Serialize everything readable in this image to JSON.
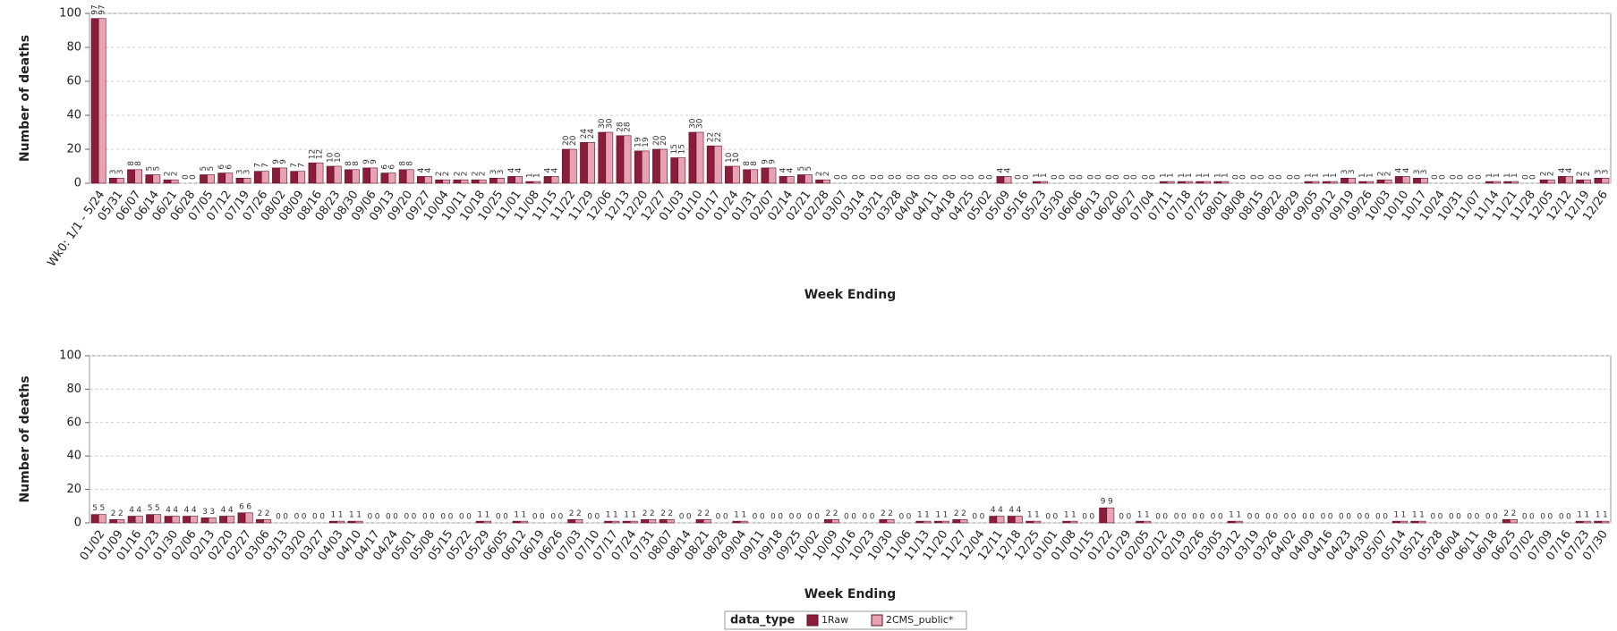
{
  "chart_data": [
    {
      "type": "bar",
      "ylabel": "Number of deaths",
      "xlabel": "Week Ending",
      "ylim": [
        0,
        100
      ],
      "yticks": [
        0,
        20,
        40,
        60,
        80,
        100
      ],
      "grid": true,
      "categories": [
        "Wk0: 1/1 - 5/24",
        "05/31",
        "06/07",
        "06/14",
        "06/21",
        "06/28",
        "07/05",
        "07/12",
        "07/19",
        "07/26",
        "08/02",
        "08/09",
        "08/16",
        "08/23",
        "08/30",
        "09/06",
        "09/13",
        "09/20",
        "09/27",
        "10/04",
        "10/11",
        "10/18",
        "10/25",
        "11/01",
        "11/08",
        "11/15",
        "11/22",
        "11/29",
        "12/06",
        "12/13",
        "12/20",
        "12/27",
        "01/03",
        "01/10",
        "01/17",
        "01/24",
        "01/31",
        "02/07",
        "02/14",
        "02/21",
        "02/28",
        "03/07",
        "03/14",
        "03/21",
        "03/28",
        "04/04",
        "04/11",
        "04/18",
        "04/25",
        "05/02",
        "05/09",
        "05/16",
        "05/23",
        "05/30",
        "06/06",
        "06/13",
        "06/20",
        "06/27",
        "07/04",
        "07/11",
        "07/18",
        "07/25",
        "08/01",
        "08/08",
        "08/15",
        "08/22",
        "08/29",
        "09/05",
        "09/12",
        "09/19",
        "09/26",
        "10/03",
        "10/10",
        "10/17",
        "10/24",
        "10/31",
        "11/07",
        "11/14",
        "11/21",
        "11/28",
        "12/05",
        "12/12",
        "12/19",
        "12/26"
      ],
      "series": [
        {
          "name": "1Raw",
          "color": "#8c1c3c",
          "values": [
            97,
            3,
            8,
            5,
            2,
            0,
            5,
            6,
            3,
            7,
            9,
            7,
            12,
            10,
            8,
            9,
            6,
            8,
            4,
            2,
            2,
            2,
            3,
            4,
            1,
            4,
            20,
            24,
            30,
            28,
            19,
            20,
            15,
            30,
            22,
            10,
            8,
            9,
            4,
            5,
            2,
            0,
            0,
            0,
            0,
            0,
            0,
            0,
            0,
            0,
            4,
            0,
            1,
            0,
            0,
            0,
            0,
            0,
            0,
            1,
            1,
            1,
            1,
            0,
            0,
            0,
            0,
            1,
            1,
            3,
            1,
            2,
            4,
            3,
            0,
            0,
            0,
            1,
            1,
            0,
            2,
            4,
            2,
            3
          ]
        },
        {
          "name": "2CMS_public*",
          "color": "#e8a3b3",
          "values": [
            97,
            3,
            8,
            5,
            2,
            0,
            5,
            6,
            3,
            7,
            9,
            7,
            12,
            10,
            8,
            9,
            6,
            8,
            4,
            2,
            2,
            2,
            3,
            4,
            1,
            4,
            20,
            24,
            30,
            28,
            19,
            20,
            15,
            30,
            22,
            10,
            8,
            9,
            4,
            5,
            2,
            0,
            0,
            0,
            0,
            0,
            0,
            0,
            0,
            0,
            4,
            0,
            1,
            0,
            0,
            0,
            0,
            0,
            0,
            1,
            1,
            1,
            1,
            0,
            0,
            0,
            0,
            1,
            1,
            3,
            1,
            2,
            4,
            3,
            0,
            0,
            0,
            1,
            1,
            0,
            2,
            4,
            2,
            3
          ]
        }
      ]
    },
    {
      "type": "bar",
      "ylabel": "Number of deaths",
      "xlabel": "Week Ending",
      "ylim": [
        0,
        100
      ],
      "yticks": [
        0,
        20,
        40,
        60,
        80,
        100
      ],
      "grid": true,
      "legend_title": "data_type",
      "legend": "bottom",
      "categories": [
        "01/02",
        "01/09",
        "01/16",
        "01/23",
        "01/30",
        "02/06",
        "02/13",
        "02/20",
        "02/27",
        "03/06",
        "03/13",
        "03/20",
        "03/27",
        "04/03",
        "04/10",
        "04/17",
        "04/24",
        "05/01",
        "05/08",
        "05/15",
        "05/22",
        "05/29",
        "06/05",
        "06/12",
        "06/19",
        "06/26",
        "07/03",
        "07/10",
        "07/17",
        "07/24",
        "07/31",
        "08/07",
        "08/14",
        "08/21",
        "08/28",
        "09/04",
        "09/11",
        "09/18",
        "09/25",
        "10/02",
        "10/09",
        "10/16",
        "10/23",
        "10/30",
        "11/06",
        "11/13",
        "11/20",
        "11/27",
        "12/04",
        "12/11",
        "12/18",
        "12/25",
        "01/01",
        "01/08",
        "01/15",
        "01/22",
        "01/29",
        "02/05",
        "02/12",
        "02/19",
        "02/26",
        "03/05",
        "03/12",
        "03/19",
        "03/26",
        "04/02",
        "04/09",
        "04/16",
        "04/23",
        "04/30",
        "05/07",
        "05/14",
        "05/21",
        "05/28",
        "06/04",
        "06/11",
        "06/18",
        "06/25",
        "07/02",
        "07/09",
        "07/16",
        "07/23",
        "07/30"
      ],
      "series": [
        {
          "name": "1Raw",
          "color": "#8c1c3c",
          "values": [
            5,
            2,
            4,
            5,
            4,
            4,
            3,
            4,
            6,
            2,
            0,
            0,
            0,
            1,
            1,
            0,
            0,
            0,
            0,
            0,
            0,
            1,
            0,
            1,
            0,
            0,
            2,
            0,
            1,
            1,
            2,
            2,
            0,
            2,
            0,
            1,
            0,
            0,
            0,
            0,
            2,
            0,
            0,
            2,
            0,
            1,
            1,
            2,
            0,
            4,
            4,
            1,
            0,
            1,
            0,
            9,
            0,
            1,
            0,
            0,
            0,
            0,
            1,
            0,
            0,
            0,
            0,
            0,
            0,
            0,
            0,
            1,
            1,
            0,
            0,
            0,
            0,
            2,
            0,
            0,
            0,
            1,
            1
          ]
        },
        {
          "name": "2CMS_public*",
          "color": "#e8a3b3",
          "values": [
            5,
            2,
            4,
            5,
            4,
            4,
            3,
            4,
            6,
            2,
            0,
            0,
            0,
            1,
            1,
            0,
            0,
            0,
            0,
            0,
            0,
            1,
            0,
            1,
            0,
            0,
            2,
            0,
            1,
            1,
            2,
            2,
            0,
            2,
            0,
            1,
            0,
            0,
            0,
            0,
            2,
            0,
            0,
            2,
            0,
            1,
            1,
            2,
            0,
            4,
            4,
            1,
            0,
            1,
            0,
            9,
            0,
            1,
            0,
            0,
            0,
            0,
            1,
            0,
            0,
            0,
            0,
            0,
            0,
            0,
            0,
            1,
            1,
            0,
            0,
            0,
            0,
            2,
            0,
            0,
            0,
            1,
            1
          ]
        }
      ]
    }
  ]
}
